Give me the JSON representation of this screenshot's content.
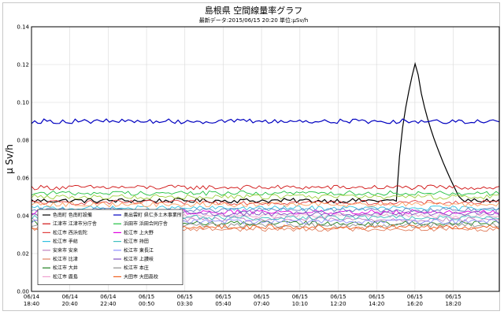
{
  "chart_data": {
    "type": "line",
    "title": "島根県 空間線量率グラフ",
    "subtitle": "最新データ:2015/06/15 20:20  単位:μSv/h",
    "ylabel": "μ Sv/h",
    "xlabel": "",
    "ylim": [
      0,
      0.14
    ],
    "y_ticks": [
      "0.00",
      "0.02",
      "0.04",
      "0.06",
      "0.08",
      "0.10",
      "0.12",
      "0.14"
    ],
    "x_ticks": [
      {
        "date": "06/14",
        "time": "18:40",
        "at": 0
      },
      {
        "date": "06/14",
        "time": "20:40",
        "at": 1
      },
      {
        "date": "06/14",
        "time": "22:40",
        "at": 2
      },
      {
        "date": "06/15",
        "time": "00:50",
        "at": 3
      },
      {
        "date": "06/15",
        "time": "03:30",
        "at": 4
      },
      {
        "date": "06/15",
        "time": "05:40",
        "at": 5
      },
      {
        "date": "06/15",
        "time": "07:40",
        "at": 6
      },
      {
        "date": "06/15",
        "time": "10:10",
        "at": 7
      },
      {
        "date": "06/15",
        "time": "12:20",
        "at": 8
      },
      {
        "date": "06/15",
        "time": "14:20",
        "at": 9
      },
      {
        "date": "06/15",
        "time": "16:20",
        "at": 10
      },
      {
        "date": "06/15",
        "time": "18:20",
        "at": 11
      }
    ],
    "grid": true,
    "legend_position": "bottom-left",
    "series": [
      {
        "name": "色南町 色南町設備",
        "color": "#000000",
        "base": 0.048,
        "spike": {
          "start": 9.55,
          "peak": 10.05,
          "end": 11.2,
          "value": 0.124
        }
      },
      {
        "name": "江津市 江津市分庁舎",
        "color": "#d01010",
        "base": 0.055
      },
      {
        "name": "松江市 西浜佐陀",
        "color": "#e04040",
        "base": 0.047
      },
      {
        "name": "松江市 手結",
        "color": "#30c0e0",
        "base": 0.044
      },
      {
        "name": "安来市 安来",
        "color": "#c080c0",
        "base": 0.038
      },
      {
        "name": "松江市 比津",
        "color": "#e08060",
        "base": 0.033
      },
      {
        "name": "松江市 大井",
        "color": "#208020",
        "base": 0.036
      },
      {
        "name": "松江市 鹿島",
        "color": "#f0a0d0",
        "base": 0.04
      },
      {
        "name": "奥出雲町 県仁多土木事業所",
        "color": "#0000c0",
        "base": 0.09
      },
      {
        "name": "浜田市 浜田合同庁舎",
        "color": "#20c040",
        "base": 0.052
      },
      {
        "name": "松江市 上大野",
        "color": "#e000e0",
        "base": 0.042
      },
      {
        "name": "松江市 持田",
        "color": "#40c0c0",
        "base": 0.039
      },
      {
        "name": "松江市 東長江",
        "color": "#9090ff",
        "base": 0.037
      },
      {
        "name": "松江市 上讃岐",
        "color": "#8050c0",
        "base": 0.041
      },
      {
        "name": "松江市 本庄",
        "color": "#909090",
        "base": 0.035
      },
      {
        "name": "大田市 大田高校",
        "color": "#f06020",
        "base": 0.034
      },
      {
        "name": "",
        "color": "#a0d040",
        "base": 0.05
      },
      {
        "name": "",
        "color": "#ffa060",
        "base": 0.046
      },
      {
        "name": "",
        "color": "#6080c0",
        "base": 0.043
      }
    ]
  }
}
